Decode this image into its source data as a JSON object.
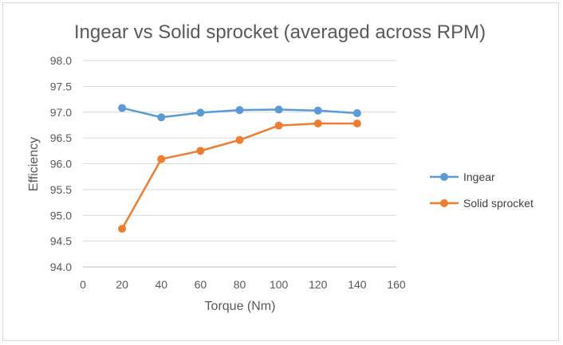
{
  "chart_data": {
    "type": "line",
    "title": "Ingear vs Solid sprocket (averaged across RPM)",
    "xlabel": "Torque (Nm)",
    "ylabel": "Efficiency",
    "xlim": [
      0,
      160
    ],
    "ylim": [
      94.0,
      98.0
    ],
    "x_ticks": [
      "0",
      "20",
      "40",
      "60",
      "80",
      "100",
      "120",
      "140",
      "160"
    ],
    "x_tick_values": [
      0,
      20,
      40,
      60,
      80,
      100,
      120,
      140,
      160
    ],
    "y_ticks": [
      "94.0",
      "94.5",
      "95.0",
      "95.5",
      "96.0",
      "96.5",
      "97.0",
      "97.5",
      "98.0"
    ],
    "y_tick_values": [
      94.0,
      94.5,
      95.0,
      95.5,
      96.0,
      96.5,
      97.0,
      97.5,
      98.0
    ],
    "grid": true,
    "legend_position": "right",
    "x": [
      20,
      40,
      60,
      80,
      100,
      120,
      140
    ],
    "series": [
      {
        "name": "Ingear",
        "color": "#5b9bd5",
        "values": [
          97.08,
          96.9,
          96.99,
          97.04,
          97.05,
          97.03,
          96.98
        ]
      },
      {
        "name": "Solid sprocket",
        "color": "#ed7d31",
        "values": [
          94.74,
          96.09,
          96.25,
          96.46,
          96.74,
          96.78,
          96.78
        ]
      }
    ]
  }
}
